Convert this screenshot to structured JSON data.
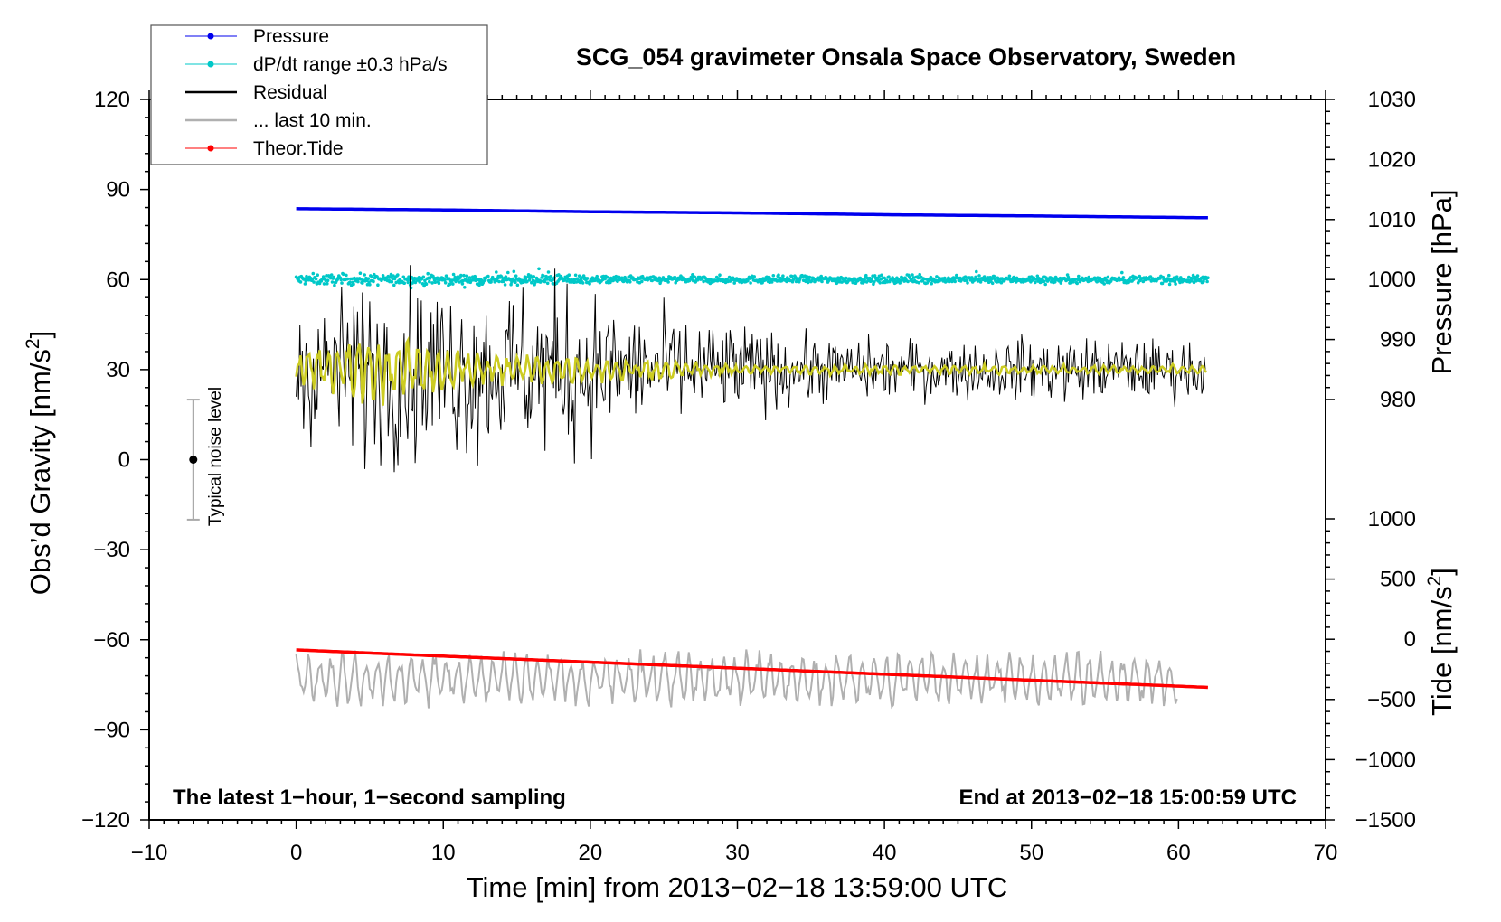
{
  "chart_data": {
    "type": "line",
    "title": "SCG_054 gravimeter Onsala Space Observatory, Sweden",
    "xlabel": "Time [min] from 2013−02−18 13:59:00 UTC",
    "ylabel_left": "Obs’d Gravity [nm/s²]",
    "ylabel_pressure": "Pressure [hPa]",
    "ylabel_tide": "Tide [nm/s²]",
    "xlim": [
      -10,
      70
    ],
    "ylim_left": [
      -120,
      120
    ],
    "pressure_lim": [
      980,
      1030
    ],
    "tide_lim": [
      -1500,
      1000
    ],
    "x_ticks": [
      "−10",
      "0",
      "10",
      "20",
      "30",
      "40",
      "50",
      "60",
      "70"
    ],
    "y_ticks_left": [
      "120",
      "90",
      "60",
      "30",
      "0",
      "−30",
      "−60",
      "−90",
      "−120"
    ],
    "pressure_ticks": [
      "1030",
      "1020",
      "1010",
      "1000",
      "990",
      "980"
    ],
    "tide_ticks": [
      "1000",
      "500",
      "0",
      "−500",
      "−1000",
      "−1500"
    ],
    "footer_left": "The latest 1−hour, 1−second sampling",
    "footer_right": "End at 2013−02−18 15:00:59 UTC",
    "noise_label": "Typical noise level",
    "noise_level": {
      "x": -7,
      "center": 0,
      "half_range": 20
    },
    "legend": [
      {
        "label": "Pressure",
        "color": "#0000ee"
      },
      {
        "label": "dP/dt range ±0.3 hPa/s",
        "color": "#00c8c8"
      },
      {
        "label": "Residual",
        "color": "#000000"
      },
      {
        "label": "... last 10 min.",
        "color": "#b0b0b0"
      },
      {
        "label": "Theor.Tide",
        "color": "#ff0000"
      }
    ],
    "series": [
      {
        "name": "Pressure",
        "axis": "pressure",
        "color": "#0000ee",
        "x": [
          0,
          10,
          20,
          30,
          40,
          50,
          62
        ],
        "y": [
          1011.8,
          1011.6,
          1011.3,
          1011.1,
          1010.8,
          1010.6,
          1010.3
        ]
      },
      {
        "name": "dP/dt range ±0.3 hPa/s",
        "axis": "left",
        "color": "#00c8c8",
        "center": 60,
        "typical_spread": 1.5
      },
      {
        "name": "Residual",
        "axis": "left",
        "color": "#000000",
        "x": [
          0,
          5,
          10,
          15,
          20,
          25,
          30,
          40,
          50,
          60,
          62
        ],
        "y": [
          30,
          30,
          30,
          30,
          30,
          30,
          30,
          30,
          30,
          30,
          30
        ],
        "envelope": [
          [
            0,
            28
          ],
          [
            5,
            38
          ],
          [
            10,
            38
          ],
          [
            13,
            35
          ],
          [
            19,
            38
          ],
          [
            22,
            25
          ],
          [
            27,
            22
          ],
          [
            35,
            14
          ],
          [
            45,
            12
          ],
          [
            52,
            14
          ],
          [
            62,
            12
          ]
        ]
      },
      {
        "name": "Residual (smoothed)",
        "axis": "left",
        "color": "#cccc22",
        "center": 30,
        "envelope": [
          [
            0,
            8
          ],
          [
            5,
            10
          ],
          [
            10,
            8
          ],
          [
            15,
            5
          ],
          [
            20,
            4
          ],
          [
            25,
            3
          ],
          [
            30,
            1.5
          ],
          [
            62,
            1.5
          ]
        ]
      },
      {
        "name": "... last 10 min.",
        "axis": "left",
        "color": "#b0b0b0",
        "x": [
          0,
          10,
          20,
          30,
          40,
          50,
          60
        ],
        "y": [
          -73,
          -73,
          -73,
          -73,
          -73,
          -73,
          -73
        ],
        "amplitude": 8
      },
      {
        "name": "Theor.Tide",
        "axis": "tide",
        "color": "#ff0000",
        "x": [
          0,
          10,
          20,
          30,
          40,
          50,
          62
        ],
        "y": [
          -88,
          -140,
          -190,
          -240,
          -290,
          -340,
          -400
        ]
      }
    ]
  }
}
